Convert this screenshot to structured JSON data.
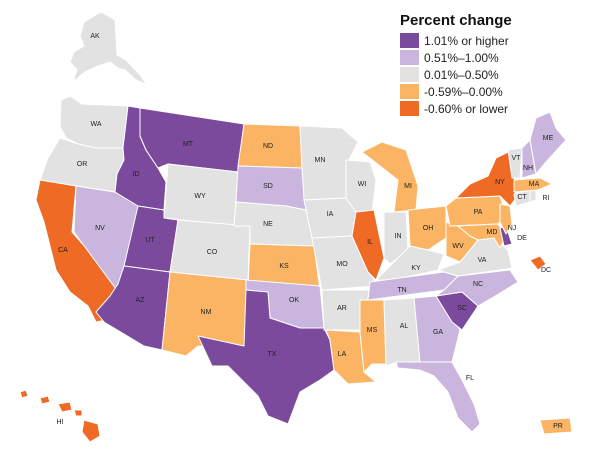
{
  "legend": {
    "title": "Percent change",
    "items": [
      {
        "key": "c1",
        "label": "1.01% or higher",
        "color": "#7b4a9d"
      },
      {
        "key": "c2",
        "label": "0.51%–1.00%",
        "color": "#c9b5de"
      },
      {
        "key": "c3",
        "label": "0.01%–0.50%",
        "color": "#e2e2e2"
      },
      {
        "key": "c4",
        "label": "-0.59%–0.00%",
        "color": "#fbb463"
      },
      {
        "key": "c5",
        "label": "-0.60% or lower",
        "color": "#ee6a25"
      }
    ]
  },
  "map_data": {
    "type": "choropleth",
    "regions": [
      {
        "id": "AK",
        "label": "AK",
        "category": "c3"
      },
      {
        "id": "WA",
        "label": "WA",
        "category": "c3"
      },
      {
        "id": "OR",
        "label": "OR",
        "category": "c3"
      },
      {
        "id": "CA",
        "label": "CA",
        "category": "c5"
      },
      {
        "id": "NV",
        "label": "NV",
        "category": "c2"
      },
      {
        "id": "ID",
        "label": "ID",
        "category": "c1"
      },
      {
        "id": "MT",
        "label": "MT",
        "category": "c1"
      },
      {
        "id": "WY",
        "label": "WY",
        "category": "c3"
      },
      {
        "id": "UT",
        "label": "UT",
        "category": "c1"
      },
      {
        "id": "AZ",
        "label": "AZ",
        "category": "c1"
      },
      {
        "id": "CO",
        "label": "CO",
        "category": "c3"
      },
      {
        "id": "NM",
        "label": "NM",
        "category": "c4"
      },
      {
        "id": "ND",
        "label": "ND",
        "category": "c4"
      },
      {
        "id": "SD",
        "label": "SD",
        "category": "c2"
      },
      {
        "id": "NE",
        "label": "NE",
        "category": "c3"
      },
      {
        "id": "KS",
        "label": "KS",
        "category": "c4"
      },
      {
        "id": "OK",
        "label": "OK",
        "category": "c2"
      },
      {
        "id": "TX",
        "label": "TX",
        "category": "c1"
      },
      {
        "id": "MN",
        "label": "MN",
        "category": "c3"
      },
      {
        "id": "IA",
        "label": "IA",
        "category": "c3"
      },
      {
        "id": "MO",
        "label": "MO",
        "category": "c3"
      },
      {
        "id": "AR",
        "label": "AR",
        "category": "c3"
      },
      {
        "id": "LA",
        "label": "LA",
        "category": "c4"
      },
      {
        "id": "WI",
        "label": "WI",
        "category": "c3"
      },
      {
        "id": "IL",
        "label": "IL",
        "category": "c5"
      },
      {
        "id": "MI",
        "label": "MI",
        "category": "c4"
      },
      {
        "id": "IN",
        "label": "IN",
        "category": "c3"
      },
      {
        "id": "OH",
        "label": "OH",
        "category": "c4"
      },
      {
        "id": "KY",
        "label": "KY",
        "category": "c3"
      },
      {
        "id": "TN",
        "label": "TN",
        "category": "c2"
      },
      {
        "id": "MS",
        "label": "MS",
        "category": "c4"
      },
      {
        "id": "AL",
        "label": "AL",
        "category": "c3"
      },
      {
        "id": "GA",
        "label": "GA",
        "category": "c2"
      },
      {
        "id": "FL",
        "label": "FL",
        "category": "c2"
      },
      {
        "id": "SC",
        "label": "SC",
        "category": "c1"
      },
      {
        "id": "NC",
        "label": "NC",
        "category": "c2"
      },
      {
        "id": "VA",
        "label": "VA",
        "category": "c3"
      },
      {
        "id": "WV",
        "label": "WV",
        "category": "c4"
      },
      {
        "id": "PA",
        "label": "PA",
        "category": "c4"
      },
      {
        "id": "NY",
        "label": "NY",
        "category": "c5"
      },
      {
        "id": "VT",
        "label": "VT",
        "category": "c3"
      },
      {
        "id": "NH",
        "label": "NH",
        "category": "c2"
      },
      {
        "id": "ME",
        "label": "ME",
        "category": "c2"
      },
      {
        "id": "MA",
        "label": "MA",
        "category": "c4"
      },
      {
        "id": "RI",
        "label": "RI",
        "category": "c3"
      },
      {
        "id": "CT",
        "label": "CT",
        "category": "c3"
      },
      {
        "id": "NJ",
        "label": "NJ",
        "category": "c4"
      },
      {
        "id": "DE",
        "label": "DE",
        "category": "c1"
      },
      {
        "id": "MD",
        "label": "MD",
        "category": "c4"
      },
      {
        "id": "DC",
        "label": "DC",
        "category": "c5"
      },
      {
        "id": "HI",
        "label": "HI",
        "category": "c5"
      },
      {
        "id": "PR",
        "label": "PR",
        "category": "c4"
      }
    ]
  }
}
